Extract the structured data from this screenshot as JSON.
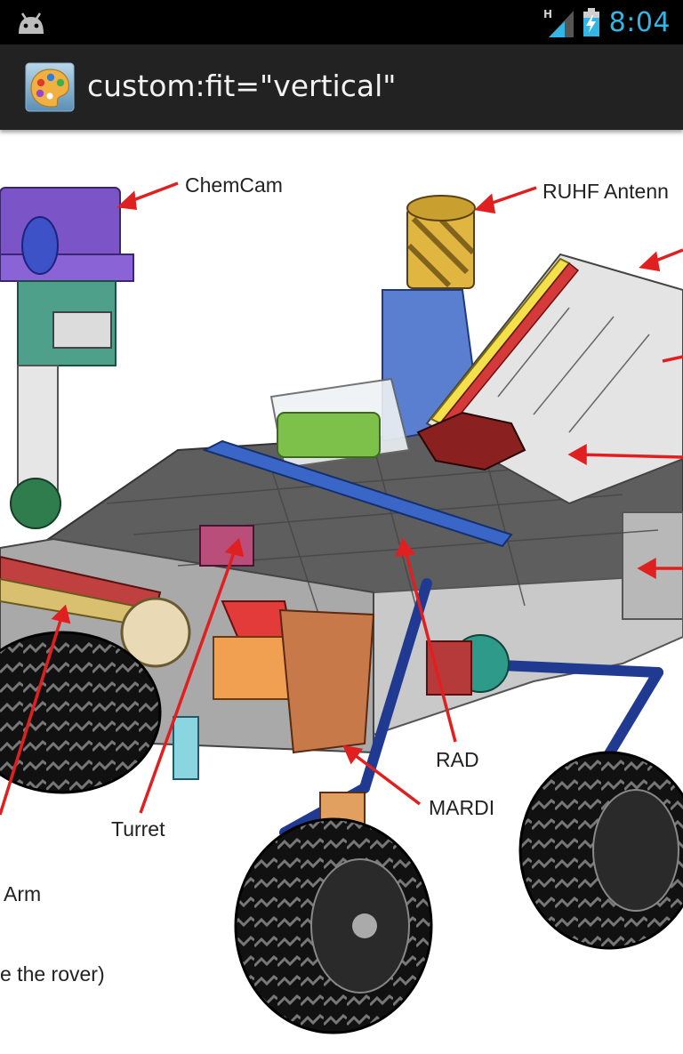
{
  "status_bar": {
    "time": "8:04",
    "network_type": "H",
    "icons": [
      "android-icon",
      "signal-icon",
      "battery-charging-icon"
    ],
    "time_color": "#33b5e5"
  },
  "action_bar": {
    "title": "custom:fit=\"vertical\"",
    "icon": "palette-app-icon",
    "background": "#222222"
  },
  "diagram": {
    "labels": {
      "chemcam": "ChemCam",
      "ruhf": "RUHF Antenn",
      "rad": "RAD",
      "mardi": "MARDI",
      "turret": "Turret",
      "arm": "Arm",
      "rover": "e the rover)"
    },
    "arrow_color": "#e02020"
  }
}
